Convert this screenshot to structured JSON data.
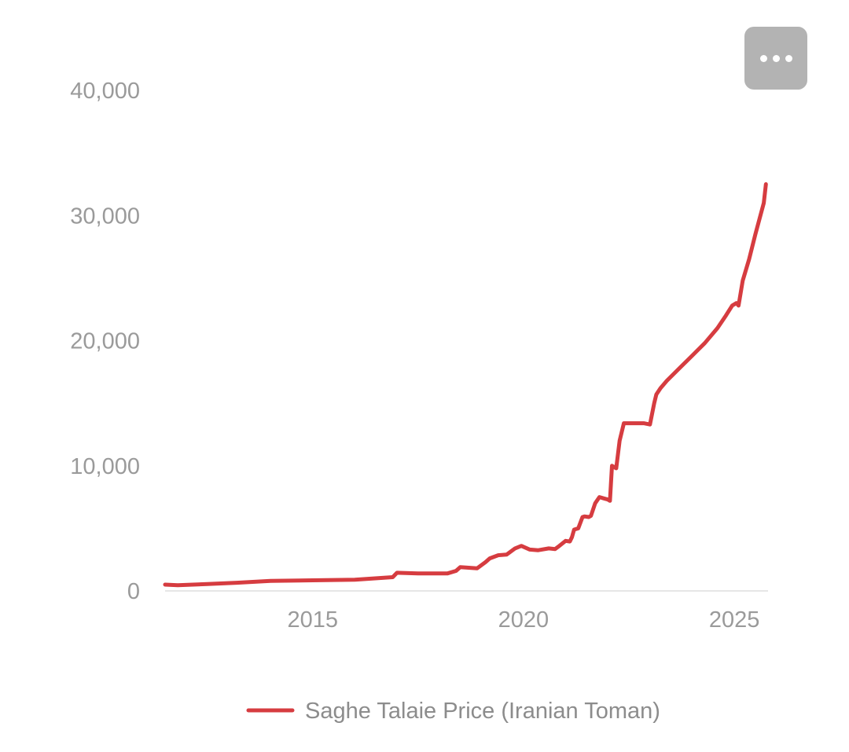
{
  "menu": {
    "icon": "more-horizontal-icon"
  },
  "chart_data": {
    "type": "line",
    "title": "",
    "xlabel": "",
    "ylabel": "",
    "x_ticks": [
      "2015",
      "2020",
      "2025"
    ],
    "x_tick_values": [
      2015,
      2020,
      2025
    ],
    "y_ticks": [
      "0",
      "10,000",
      "20,000",
      "30,000",
      "40,000"
    ],
    "y_tick_values": [
      0,
      10000,
      20000,
      30000,
      40000
    ],
    "xlim": [
      2011.5,
      2025.8
    ],
    "ylim": [
      0,
      40000
    ],
    "grid": false,
    "legend_position": "bottom",
    "series": [
      {
        "name": "Saghe Talaie Price (Iranian Toman)",
        "color": "#d63c40",
        "x": [
          2011.5,
          2011.8,
          2012.5,
          2013.2,
          2014.0,
          2015.0,
          2016.0,
          2016.9,
          2017.0,
          2017.5,
          2017.9,
          2018.2,
          2018.4,
          2018.5,
          2018.9,
          2019.1,
          2019.2,
          2019.4,
          2019.6,
          2019.8,
          2019.95,
          2020.15,
          2020.35,
          2020.6,
          2020.75,
          2020.85,
          2021.0,
          2021.1,
          2021.15,
          2021.2,
          2021.3,
          2021.4,
          2021.45,
          2021.55,
          2021.6,
          2021.7,
          2021.8,
          2021.9,
          2022.0,
          2022.05,
          2022.1,
          2022.2,
          2022.28,
          2022.38,
          2022.5,
          2022.6,
          2022.7,
          2022.85,
          2023.0,
          2023.1,
          2023.15,
          2023.25,
          2023.4,
          2023.7,
          2024.0,
          2024.3,
          2024.6,
          2024.8,
          2024.95,
          2025.05,
          2025.1,
          2025.2,
          2025.35,
          2025.5,
          2025.7,
          2025.75
        ],
        "values": [
          500,
          450,
          550,
          650,
          800,
          850,
          900,
          1100,
          1450,
          1400,
          1400,
          1400,
          1600,
          1900,
          1800,
          2300,
          2600,
          2850,
          2900,
          3400,
          3600,
          3300,
          3250,
          3400,
          3350,
          3600,
          4000,
          3950,
          4300,
          4900,
          5000,
          5900,
          5950,
          5900,
          6000,
          7000,
          7500,
          7400,
          7300,
          7200,
          10000,
          9800,
          12000,
          13400,
          13400,
          13400,
          13400,
          13400,
          13300,
          15000,
          15700,
          16200,
          16800,
          17800,
          18800,
          19800,
          21000,
          22000,
          22800,
          23000,
          22800,
          24800,
          26500,
          28500,
          31000,
          32500
        ]
      }
    ]
  }
}
